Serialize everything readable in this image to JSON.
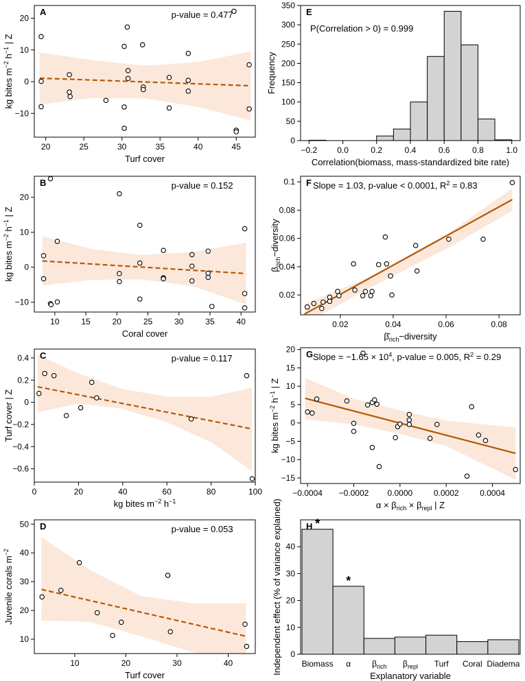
{
  "chart_data": [
    {
      "id": "A",
      "type": "scatter",
      "panel_label": "A",
      "annotation": "p-value = 0.477",
      "xlabel": "Turf cover",
      "ylabel": "kg bites m⁻² h⁻¹ | Z",
      "xlim": [
        18.5,
        47.5
      ],
      "ylim": [
        -17.5,
        24
      ],
      "xticks": [
        20,
        25,
        30,
        35,
        40,
        45
      ],
      "yticks": [
        -10,
        0,
        10,
        20
      ],
      "points": [
        [
          19.4,
          14.2
        ],
        [
          19.4,
          0.1
        ],
        [
          19.4,
          -7.9
        ],
        [
          23.1,
          2.2
        ],
        [
          23.1,
          -3.3
        ],
        [
          23.2,
          -4.7
        ],
        [
          27.9,
          -5.9
        ],
        [
          30.3,
          11.1
        ],
        [
          30.7,
          17.2
        ],
        [
          30.8,
          3.5
        ],
        [
          30.8,
          1.0
        ],
        [
          30.3,
          -8.0
        ],
        [
          30.3,
          -14.7
        ],
        [
          32.7,
          11.6
        ],
        [
          32.8,
          -1.7
        ],
        [
          32.8,
          -2.5
        ],
        [
          36.2,
          1.3
        ],
        [
          36.2,
          -8.3
        ],
        [
          38.7,
          8.9
        ],
        [
          38.7,
          0.4
        ],
        [
          38.7,
          -3.0
        ],
        [
          44.7,
          22.2
        ],
        [
          45.0,
          -15.3
        ],
        [
          45.0,
          -15.8
        ],
        [
          46.7,
          5.3
        ],
        [
          46.7,
          -8.6
        ]
      ],
      "trend": {
        "style": "dashed",
        "start": [
          19.2,
          1.1
        ],
        "end": [
          46.9,
          -1.3
        ]
      },
      "band": {
        "x": [
          19.2,
          26,
          33,
          40,
          46.9
        ],
        "upper": [
          9.2,
          6.8,
          5.0,
          6.2,
          9.5
        ],
        "lower": [
          -7.2,
          -5.2,
          -5.3,
          -8.0,
          -12.2
        ]
      }
    },
    {
      "id": "B",
      "type": "scatter",
      "panel_label": "B",
      "annotation": "p-value = 0.152",
      "xlabel": "Coral cover",
      "ylabel": "kg bites m⁻² h⁻¹ | Z",
      "xlim": [
        6.7,
        42.3
      ],
      "ylim": [
        -12.8,
        26
      ],
      "xticks": [
        10,
        15,
        20,
        25,
        30,
        35,
        40
      ],
      "yticks": [
        -10,
        0,
        10,
        20
      ],
      "points": [
        [
          8.2,
          3.3
        ],
        [
          8.2,
          -3.3
        ],
        [
          9.3,
          25.3
        ],
        [
          9.3,
          -10.4
        ],
        [
          9.4,
          -10.7
        ],
        [
          10.4,
          7.4
        ],
        [
          10.4,
          -9.9
        ],
        [
          20.4,
          21.0
        ],
        [
          20.4,
          -1.8
        ],
        [
          20.4,
          -4.1
        ],
        [
          23.7,
          12.0
        ],
        [
          23.7,
          1.2
        ],
        [
          23.7,
          -9.1
        ],
        [
          27.5,
          4.8
        ],
        [
          27.5,
          -3.0
        ],
        [
          27.5,
          -3.3
        ],
        [
          32.1,
          3.6
        ],
        [
          32.1,
          0.3
        ],
        [
          32.1,
          -3.9
        ],
        [
          34.7,
          4.6
        ],
        [
          34.7,
          -1.7
        ],
        [
          34.7,
          -2.9
        ],
        [
          35.3,
          -11.2
        ],
        [
          40.6,
          11.0
        ],
        [
          40.6,
          -7.5
        ],
        [
          40.6,
          -11.6
        ]
      ],
      "trend": {
        "style": "dashed",
        "start": [
          8.0,
          1.8
        ],
        "end": [
          40.8,
          -1.8
        ]
      },
      "band": {
        "x": [
          8.0,
          16,
          24,
          32,
          40.8
        ],
        "upper": [
          8.8,
          5.2,
          3.5,
          4.3,
          7.0
        ],
        "lower": [
          -5.2,
          -3.6,
          -3.5,
          -5.3,
          -10.6
        ]
      }
    },
    {
      "id": "C",
      "type": "scatter",
      "panel_label": "C",
      "annotation": "p-value = 0.117",
      "xlabel": "kg bites m⁻² h⁻¹",
      "ylabel": "Turf cover | Z",
      "xlim": [
        0,
        100
      ],
      "ylim": [
        -0.72,
        0.48
      ],
      "xticks": [
        0,
        20,
        40,
        60,
        80,
        100
      ],
      "yticks": [
        -0.6,
        -0.4,
        -0.2,
        0.0,
        0.2,
        0.4
      ],
      "points": [
        [
          2.1,
          0.08
        ],
        [
          4.7,
          0.26
        ],
        [
          8.9,
          0.24
        ],
        [
          14.5,
          -0.12
        ],
        [
          21.0,
          -0.05
        ],
        [
          26.0,
          0.18
        ],
        [
          28.2,
          0.04
        ],
        [
          71.0,
          -0.15
        ],
        [
          96.1,
          0.24
        ],
        [
          98.6,
          -0.69
        ]
      ],
      "trend": {
        "style": "dashed",
        "start": [
          1.5,
          0.14
        ],
        "end": [
          98.5,
          -0.24
        ]
      },
      "band": {
        "x": [
          1.5,
          20,
          40,
          60,
          80,
          98.5
        ],
        "upper": [
          0.43,
          0.26,
          0.12,
          0.05,
          0.05,
          0.13
        ],
        "lower": [
          -0.09,
          -0.01,
          -0.06,
          -0.18,
          -0.36,
          -0.62
        ]
      }
    },
    {
      "id": "D",
      "type": "scatter",
      "panel_label": "D",
      "annotation": "p-value = 0.053",
      "xlabel": "Turf cover",
      "ylabel": "Juvenile corals m⁻²",
      "xlim": [
        2.1,
        45.3
      ],
      "ylim": [
        5,
        51.5
      ],
      "xticks": [
        10,
        20,
        30,
        40
      ],
      "yticks": [
        10,
        20,
        30,
        40,
        50
      ],
      "points": [
        [
          3.6,
          24.7
        ],
        [
          7.3,
          27.0
        ],
        [
          10.9,
          36.6
        ],
        [
          14.4,
          19.2
        ],
        [
          17.4,
          11.3
        ],
        [
          19.1,
          15.9
        ],
        [
          28.2,
          32.2
        ],
        [
          28.7,
          12.6
        ],
        [
          43.3,
          15.2
        ],
        [
          43.6,
          7.5
        ]
      ],
      "trend": {
        "style": "dashed",
        "start": [
          3.5,
          27.3
        ],
        "end": [
          43.5,
          11.0
        ]
      },
      "band": {
        "x": [
          3.5,
          13,
          23,
          33,
          43.5
        ],
        "upper": [
          45.5,
          34.0,
          25.0,
          22.5,
          22.5
        ],
        "lower": [
          16.5,
          16.0,
          11.0,
          5.5,
          1.0
        ]
      }
    },
    {
      "id": "E",
      "type": "bar",
      "panel_label": "E",
      "annotation": "P(Correlation > 0) = 0.999",
      "xlabel": "Correlation(biomass, mass-standardized bite rate)",
      "ylabel": "Frequency",
      "xlim": [
        -0.25,
        1.05
      ],
      "ylim": [
        0,
        350
      ],
      "xticks": [
        -0.2,
        0.0,
        0.2,
        0.4,
        0.6,
        0.8,
        1.0
      ],
      "xtick_labels": [
        "−0.2",
        "0.0",
        "0.2",
        "0.4",
        "0.6",
        "0.8",
        "1.0"
      ],
      "yticks": [
        0,
        50,
        100,
        150,
        200,
        250,
        300,
        350
      ],
      "bin_width": 0.1,
      "bins": [
        -0.2,
        -0.1,
        0.0,
        0.1,
        0.2,
        0.3,
        0.4,
        0.5,
        0.6,
        0.7,
        0.8,
        0.9
      ],
      "values": [
        1,
        0,
        0,
        0,
        12,
        30,
        100,
        218,
        335,
        248,
        56,
        2
      ]
    },
    {
      "id": "F",
      "type": "scatter",
      "panel_label": "F",
      "annotation": "Slope = 1.03, p-value < 0.0001, R² = 0.83",
      "xlabel": "β̂rich−diversity",
      "ylabel": "βrich−diversity",
      "xlim": [
        0.005,
        0.088
      ],
      "ylim": [
        0.006,
        0.104
      ],
      "xticks": [
        0.02,
        0.04,
        0.06,
        0.08
      ],
      "yticks": [
        0.02,
        0.04,
        0.06,
        0.08,
        0.1
      ],
      "points": [
        [
          0.0075,
          0.0115
        ],
        [
          0.01,
          0.014
        ],
        [
          0.013,
          0.0105
        ],
        [
          0.0135,
          0.015
        ],
        [
          0.016,
          0.0155
        ],
        [
          0.016,
          0.0185
        ],
        [
          0.019,
          0.0225
        ],
        [
          0.0195,
          0.0195
        ],
        [
          0.025,
          0.042
        ],
        [
          0.0255,
          0.0235
        ],
        [
          0.0285,
          0.0195
        ],
        [
          0.0295,
          0.0225
        ],
        [
          0.0315,
          0.0195
        ],
        [
          0.032,
          0.0225
        ],
        [
          0.0345,
          0.0415
        ],
        [
          0.037,
          0.061
        ],
        [
          0.0375,
          0.042
        ],
        [
          0.039,
          0.0335
        ],
        [
          0.0395,
          0.02
        ],
        [
          0.0485,
          0.055
        ],
        [
          0.049,
          0.037
        ],
        [
          0.061,
          0.0595
        ],
        [
          0.074,
          0.0595
        ],
        [
          0.085,
          0.0995
        ]
      ],
      "trend": {
        "style": "solid",
        "start": [
          0.0065,
          0.0065
        ],
        "end": [
          0.085,
          0.0875
        ]
      },
      "band": {
        "x": [
          0.0065,
          0.03,
          0.06,
          0.085
        ],
        "upper": [
          0.0135,
          0.032,
          0.0625,
          0.0955
        ],
        "lower": [
          -0.0005,
          0.024,
          0.0525,
          0.0795
        ]
      }
    },
    {
      "id": "G",
      "type": "scatter",
      "panel_label": "G",
      "annotation": "Slope = −1.65 × 10⁴, p-value = 0.005, R² = 0.29",
      "xlabel": "α × βrich × βrepl | Z",
      "ylabel": "kg bites m⁻² h⁻¹ | Z",
      "xlim": [
        -0.00043,
        0.00052
      ],
      "ylim": [
        -16.5,
        20.5
      ],
      "xticks": [
        -0.0004,
        -0.0002,
        0.0,
        0.0002,
        0.0004
      ],
      "xtick_labels": [
        "−0.0004",
        "−0.0002",
        "0.0000",
        "0.0002",
        "0.0004"
      ],
      "yticks": [
        -15,
        -10,
        -5,
        0,
        5,
        10,
        15,
        20
      ],
      "points": [
        [
          -0.0004,
          3.0
        ],
        [
          -0.00038,
          2.7
        ],
        [
          -0.00036,
          6.5
        ],
        [
          -0.00023,
          6.0
        ],
        [
          -0.0002,
          -0.1
        ],
        [
          -0.0002,
          -2.3
        ],
        [
          -0.00016,
          19.0
        ],
        [
          -0.00014,
          4.9
        ],
        [
          -0.00012,
          5.6
        ],
        [
          -0.00011,
          6.3
        ],
        [
          -0.0001,
          5.1
        ],
        [
          -0.00012,
          -6.7
        ],
        [
          -9e-05,
          -11.9
        ],
        [
          -2e-05,
          -4.0
        ],
        [
          -1e-05,
          -1.0
        ],
        [
          0.0,
          -0.3
        ],
        [
          4e-05,
          2.3
        ],
        [
          4e-05,
          0.8
        ],
        [
          4e-05,
          -0.4
        ],
        [
          0.00013,
          -4.2
        ],
        [
          0.00016,
          -0.4
        ],
        [
          0.00029,
          -14.5
        ],
        [
          0.00031,
          4.4
        ],
        [
          0.00034,
          -3.3
        ],
        [
          0.00037,
          -4.8
        ],
        [
          0.0005,
          -12.7
        ]
      ],
      "trend": {
        "style": "solid",
        "start": [
          -0.00041,
          6.7
        ],
        "end": [
          0.0005,
          -8.3
        ]
      },
      "band": {
        "x": [
          -0.00041,
          -0.0002,
          0.0,
          0.0002,
          0.0005
        ],
        "upper": [
          12.3,
          6.6,
          3.4,
          0.6,
          -1.2
        ],
        "lower": [
          1.0,
          -0.4,
          -3.0,
          -6.3,
          -15.5
        ]
      }
    },
    {
      "id": "H",
      "type": "bar",
      "panel_label": "H",
      "xlabel": "Explanatory variable",
      "ylabel": "Independent effect (% of variance explained)",
      "ylim": [
        0,
        50
      ],
      "yticks": [
        0,
        10,
        20,
        30,
        40
      ],
      "categories": [
        "Biomass",
        "α",
        "βrich",
        "βrepl",
        "Turf",
        "Coral",
        "Diadema"
      ],
      "values": [
        46.5,
        25.3,
        5.9,
        6.4,
        7.1,
        4.7,
        5.4
      ],
      "significant": [
        true,
        true,
        false,
        false,
        false,
        false,
        false
      ],
      "significance_marker": "*"
    }
  ],
  "colors": {
    "trend_line": "#B35806",
    "band_fill": "#FBE8DA",
    "bar_fill": "#D3D3D3",
    "axis": "#000000"
  }
}
